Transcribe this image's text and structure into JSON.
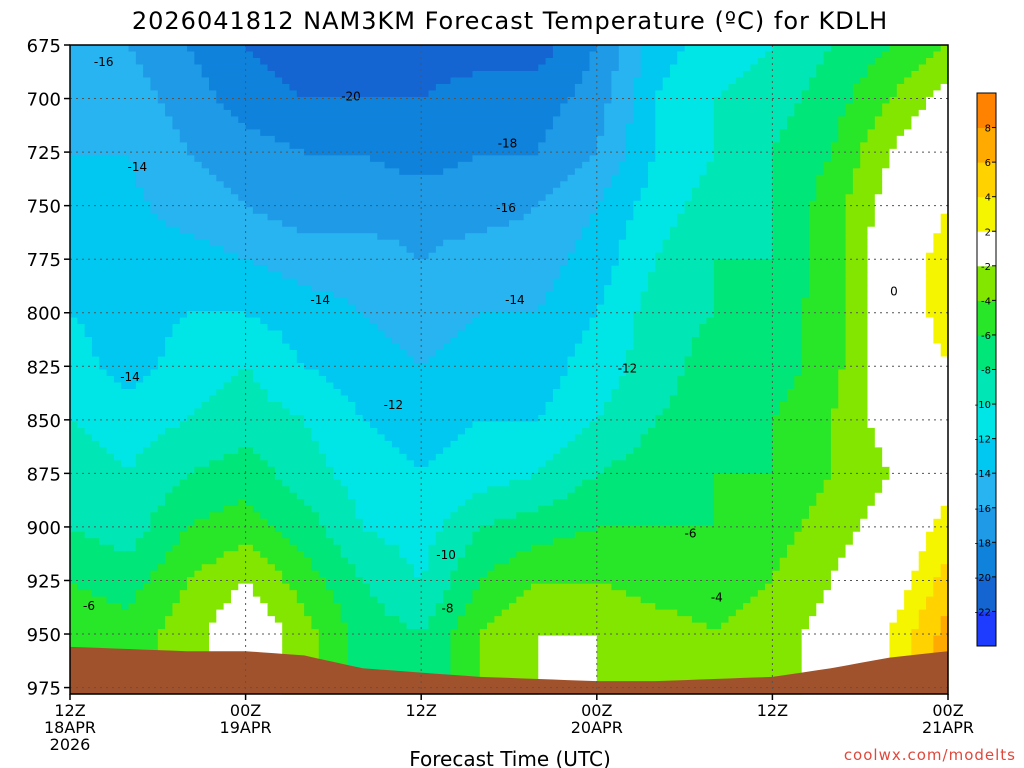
{
  "chart_data": {
    "type": "heatmap",
    "title": "2026041812 NAM3KM Forecast Temperature (ºC) for KDLH",
    "xlabel": "Forecast Time (UTC)",
    "ylabel": "",
    "credit": "coolwx.com/modelts",
    "y_axis": {
      "ticks": [
        "675",
        "700",
        "725",
        "750",
        "775",
        "800",
        "825",
        "850",
        "875",
        "900",
        "925",
        "950",
        "975"
      ],
      "range": [
        675,
        978
      ],
      "inverted": true,
      "unit": "hPa"
    },
    "x_axis": {
      "range_hours": [
        0,
        60
      ],
      "ticks": [
        {
          "hour": 0,
          "lines": [
            "12Z",
            "18APR",
            "2026"
          ]
        },
        {
          "hour": 12,
          "lines": [
            "00Z",
            "19APR"
          ]
        },
        {
          "hour": 24,
          "lines": [
            "12Z"
          ]
        },
        {
          "hour": 36,
          "lines": [
            "00Z",
            "20APR"
          ]
        },
        {
          "hour": 48,
          "lines": [
            "12Z"
          ]
        },
        {
          "hour": 60,
          "lines": [
            "00Z",
            "21APR"
          ]
        }
      ]
    },
    "grid": true,
    "colorbar": {
      "levels": [
        -24,
        -22,
        -20,
        -18,
        -16,
        -14,
        -12,
        -10,
        -8,
        -6,
        -4,
        -2,
        2,
        4,
        6,
        8,
        10
      ],
      "labels": [
        "-22",
        "-20",
        "-18",
        "-16",
        "-14",
        "-12",
        "-10",
        "-8",
        "-6",
        "-4",
        "-2",
        "2",
        "4",
        "6",
        "8"
      ],
      "colors": [
        "#1e3cff",
        "#1464d2",
        "#0f82dc",
        "#1e9ae6",
        "#28b4f0",
        "#00c8f0",
        "#00e6e6",
        "#00e6b4",
        "#00e678",
        "#28e628",
        "#82e600",
        "#ffffff",
        "#f5f500",
        "#ffd200",
        "#ffaa00",
        "#ff8200"
      ]
    },
    "contour_labels": [
      {
        "text": "-16",
        "hour": 2.3,
        "p": 683
      },
      {
        "text": "-14",
        "hour": 4.6,
        "p": 732
      },
      {
        "text": "-20",
        "hour": 19.2,
        "p": 699
      },
      {
        "text": "-18",
        "hour": 29.9,
        "p": 721
      },
      {
        "text": "-16",
        "hour": 29.8,
        "p": 751
      },
      {
        "text": "-14",
        "hour": 17.1,
        "p": 794
      },
      {
        "text": "-14",
        "hour": 30.4,
        "p": 794
      },
      {
        "text": "-14",
        "hour": 4.1,
        "p": 830
      },
      {
        "text": "-12",
        "hour": 22.1,
        "p": 843
      },
      {
        "text": "-12",
        "hour": 38.1,
        "p": 826
      },
      {
        "text": "-10",
        "hour": 25.7,
        "p": 913
      },
      {
        "text": "-8",
        "hour": 25.8,
        "p": 938
      },
      {
        "text": "-6",
        "hour": 1.3,
        "p": 937
      },
      {
        "text": "-6",
        "hour": 42.4,
        "p": 903
      },
      {
        "text": "-4",
        "hour": 44.2,
        "p": 933
      },
      {
        "text": "0",
        "hour": 56.3,
        "p": 790
      }
    ],
    "values": [
      {
        "hour": 0,
        "profile": [
          [
            675,
            -15
          ],
          [
            700,
            -15
          ],
          [
            725,
            -14
          ],
          [
            775,
            -13
          ],
          [
            800,
            -12
          ],
          [
            850,
            -10
          ],
          [
            875,
            -9
          ],
          [
            900,
            -8
          ],
          [
            925,
            -6
          ],
          [
            950,
            -5
          ],
          [
            956,
            -5
          ]
        ]
      },
      {
        "hour": 4,
        "profile": [
          [
            675,
            -16
          ],
          [
            700,
            -15
          ],
          [
            725,
            -14
          ],
          [
            775,
            -13
          ],
          [
            825,
            -13
          ],
          [
            850,
            -11
          ],
          [
            875,
            -10
          ],
          [
            900,
            -9
          ],
          [
            925,
            -7
          ],
          [
            950,
            -5
          ],
          [
            957,
            -5
          ]
        ]
      },
      {
        "hour": 8,
        "profile": [
          [
            675,
            -18
          ],
          [
            700,
            -17
          ],
          [
            725,
            -16
          ],
          [
            750,
            -15
          ],
          [
            775,
            -13
          ],
          [
            800,
            -12
          ],
          [
            825,
            -11
          ],
          [
            850,
            -10
          ],
          [
            875,
            -8
          ],
          [
            900,
            -6
          ],
          [
            925,
            -4
          ],
          [
            950,
            -3
          ],
          [
            958,
            -3
          ]
        ]
      },
      {
        "hour": 12,
        "profile": [
          [
            675,
            -20
          ],
          [
            700,
            -19
          ],
          [
            725,
            -17
          ],
          [
            750,
            -16
          ],
          [
            775,
            -14
          ],
          [
            800,
            -12
          ],
          [
            825,
            -10
          ],
          [
            850,
            -9
          ],
          [
            875,
            -7
          ],
          [
            900,
            -5
          ],
          [
            925,
            -2
          ],
          [
            950,
            0
          ],
          [
            958,
            0
          ]
        ]
      },
      {
        "hour": 16,
        "profile": [
          [
            675,
            -21
          ],
          [
            700,
            -20
          ],
          [
            725,
            -18
          ],
          [
            750,
            -17
          ],
          [
            775,
            -15
          ],
          [
            800,
            -13
          ],
          [
            825,
            -12
          ],
          [
            850,
            -10
          ],
          [
            875,
            -9
          ],
          [
            900,
            -7
          ],
          [
            925,
            -5
          ],
          [
            950,
            -3
          ],
          [
            960,
            -3
          ]
        ]
      },
      {
        "hour": 20,
        "profile": [
          [
            675,
            -21
          ],
          [
            700,
            -20
          ],
          [
            725,
            -18
          ],
          [
            750,
            -17
          ],
          [
            775,
            -15
          ],
          [
            800,
            -14
          ],
          [
            825,
            -13
          ],
          [
            850,
            -12
          ],
          [
            875,
            -11
          ],
          [
            900,
            -10
          ],
          [
            925,
            -8
          ],
          [
            950,
            -7
          ],
          [
            966,
            -7
          ]
        ]
      },
      {
        "hour": 24,
        "profile": [
          [
            675,
            -21
          ],
          [
            700,
            -20
          ],
          [
            725,
            -19
          ],
          [
            750,
            -17
          ],
          [
            775,
            -16
          ],
          [
            800,
            -15
          ],
          [
            825,
            -14
          ],
          [
            850,
            -13
          ],
          [
            875,
            -12
          ],
          [
            900,
            -11
          ],
          [
            925,
            -10
          ],
          [
            950,
            -8
          ],
          [
            968,
            -8
          ]
        ]
      },
      {
        "hour": 28,
        "profile": [
          [
            675,
            -21
          ],
          [
            700,
            -19
          ],
          [
            725,
            -18
          ],
          [
            750,
            -17
          ],
          [
            775,
            -15
          ],
          [
            800,
            -14
          ],
          [
            825,
            -13
          ],
          [
            850,
            -12
          ],
          [
            875,
            -11
          ],
          [
            900,
            -8
          ],
          [
            925,
            -6
          ],
          [
            950,
            -4
          ],
          [
            970,
            -4
          ]
        ]
      },
      {
        "hour": 32,
        "profile": [
          [
            675,
            -21
          ],
          [
            700,
            -19
          ],
          [
            725,
            -18
          ],
          [
            750,
            -16
          ],
          [
            775,
            -15
          ],
          [
            800,
            -14
          ],
          [
            825,
            -13
          ],
          [
            850,
            -12
          ],
          [
            875,
            -10
          ],
          [
            900,
            -7
          ],
          [
            925,
            -4
          ],
          [
            950,
            -2
          ],
          [
            971,
            -2
          ]
        ]
      },
      {
        "hour": 36,
        "profile": [
          [
            675,
            -18
          ],
          [
            700,
            -17
          ],
          [
            725,
            -16
          ],
          [
            750,
            -14
          ],
          [
            775,
            -13
          ],
          [
            800,
            -12
          ],
          [
            825,
            -11
          ],
          [
            850,
            -10
          ],
          [
            875,
            -8
          ],
          [
            900,
            -6
          ],
          [
            925,
            -4
          ],
          [
            950,
            -2
          ],
          [
            972,
            -2
          ]
        ]
      },
      {
        "hour": 40,
        "profile": [
          [
            675,
            -13
          ],
          [
            700,
            -12
          ],
          [
            725,
            -12
          ],
          [
            750,
            -11
          ],
          [
            775,
            -10
          ],
          [
            800,
            -9
          ],
          [
            825,
            -9
          ],
          [
            850,
            -8
          ],
          [
            875,
            -7
          ],
          [
            900,
            -6
          ],
          [
            925,
            -5
          ],
          [
            950,
            -3
          ],
          [
            972,
            -3
          ]
        ]
      },
      {
        "hour": 44,
        "profile": [
          [
            675,
            -11
          ],
          [
            700,
            -10
          ],
          [
            725,
            -10
          ],
          [
            750,
            -9
          ],
          [
            775,
            -8
          ],
          [
            800,
            -8
          ],
          [
            825,
            -7
          ],
          [
            850,
            -7
          ],
          [
            875,
            -6
          ],
          [
            900,
            -6
          ],
          [
            925,
            -5
          ],
          [
            950,
            -4
          ],
          [
            971,
            -4
          ]
        ]
      },
      {
        "hour": 48,
        "profile": [
          [
            675,
            -10
          ],
          [
            700,
            -9
          ],
          [
            725,
            -8
          ],
          [
            750,
            -8
          ],
          [
            775,
            -8
          ],
          [
            800,
            -7
          ],
          [
            825,
            -7
          ],
          [
            850,
            -6
          ],
          [
            875,
            -6
          ],
          [
            900,
            -5
          ],
          [
            925,
            -4
          ],
          [
            950,
            -3
          ],
          [
            970,
            -3
          ]
        ]
      },
      {
        "hour": 52,
        "profile": [
          [
            675,
            -8
          ],
          [
            700,
            -7
          ],
          [
            725,
            -6
          ],
          [
            750,
            -5
          ],
          [
            775,
            -5
          ],
          [
            800,
            -5
          ],
          [
            825,
            -5
          ],
          [
            850,
            -4
          ],
          [
            875,
            -4
          ],
          [
            900,
            -3
          ],
          [
            925,
            -2
          ],
          [
            950,
            -1
          ],
          [
            966,
            -1
          ]
        ]
      },
      {
        "hour": 56,
        "profile": [
          [
            675,
            -6
          ],
          [
            700,
            -4
          ],
          [
            725,
            -2
          ],
          [
            750,
            -1
          ],
          [
            775,
            0
          ],
          [
            800,
            0
          ],
          [
            825,
            0
          ],
          [
            850,
            -1
          ],
          [
            875,
            -2
          ],
          [
            900,
            -1
          ],
          [
            925,
            0
          ],
          [
            950,
            2
          ],
          [
            961,
            2
          ]
        ]
      },
      {
        "hour": 60,
        "profile": [
          [
            675,
            -4
          ],
          [
            700,
            -1
          ],
          [
            725,
            1
          ],
          [
            750,
            2
          ],
          [
            775,
            3
          ],
          [
            800,
            3
          ],
          [
            825,
            2
          ],
          [
            850,
            -1
          ],
          [
            875,
            1
          ],
          [
            900,
            3
          ],
          [
            925,
            5
          ],
          [
            950,
            7
          ],
          [
            958,
            7
          ]
        ]
      }
    ]
  }
}
